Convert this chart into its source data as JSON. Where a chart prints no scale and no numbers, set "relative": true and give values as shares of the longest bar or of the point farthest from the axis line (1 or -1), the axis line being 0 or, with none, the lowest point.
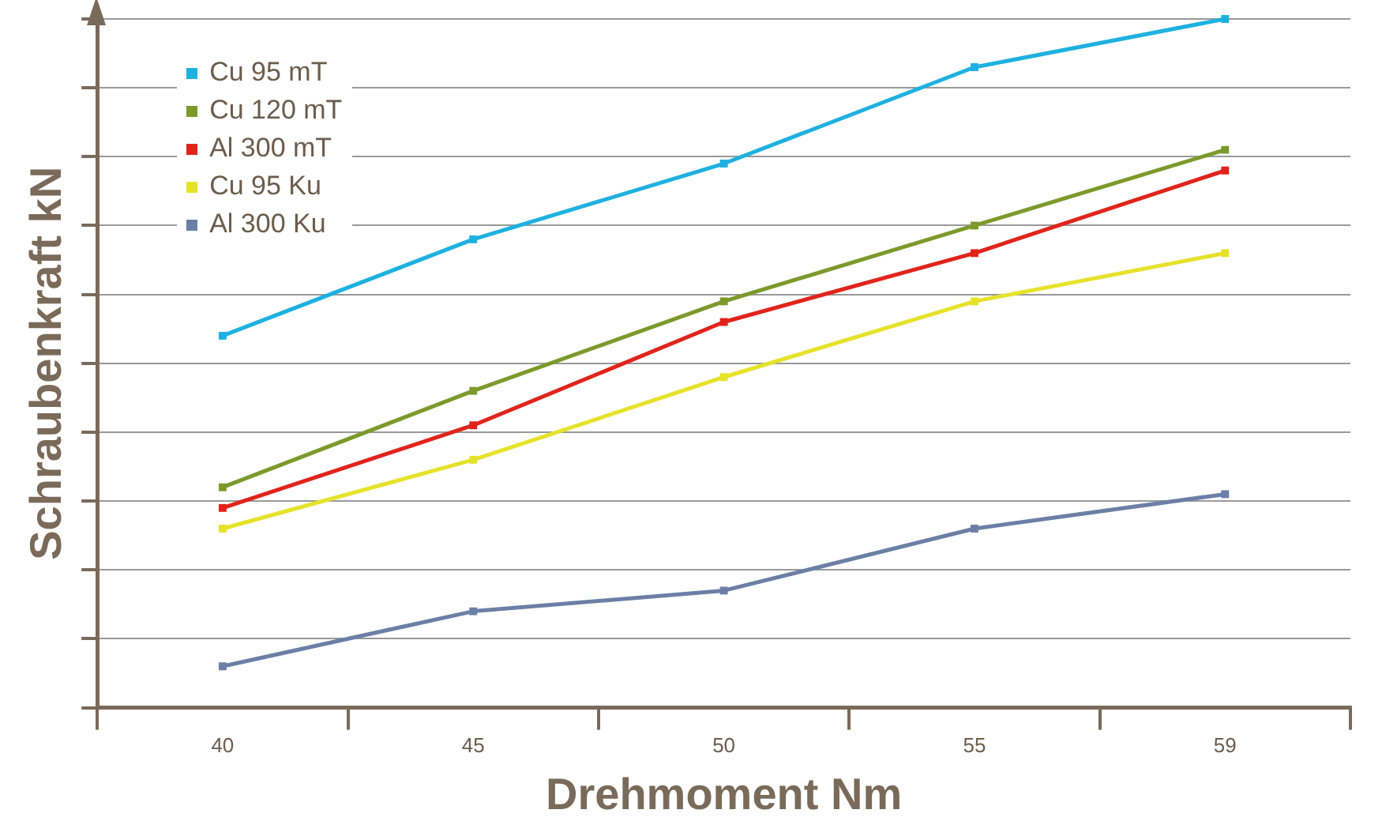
{
  "chart_data": {
    "type": "line",
    "xlabel": "Drehmoment Nm",
    "ylabel": "Schraubenkraft kN",
    "relative": true,
    "categories": [
      "40",
      "45",
      "50",
      "55",
      "59"
    ],
    "series": [
      {
        "name": "Cu 95 mT",
        "color": "#1eb1e0",
        "values": [
          0.54,
          0.68,
          0.79,
          0.93,
          1
        ]
      },
      {
        "name": "Cu 120 mT",
        "color": "#7c9a2c",
        "values": [
          0.32,
          0.46,
          0.59,
          0.7,
          0.81
        ]
      },
      {
        "name": "Al 300 mT",
        "color": "#e0241c",
        "values": [
          0.29,
          0.41,
          0.56,
          0.66,
          0.78
        ]
      },
      {
        "name": "Cu 95 Ku",
        "color": "#e6e22a",
        "values": [
          0.26,
          0.36,
          0.48,
          0.59,
          0.66
        ]
      },
      {
        "name": "Al 300 Ku",
        "color": "#6b7fa6",
        "values": [
          0.06,
          0.14,
          0.17,
          0.26,
          0.31
        ]
      }
    ],
    "grid": "y",
    "legend": "top left",
    "marker": "square",
    "line_style": "solid"
  }
}
